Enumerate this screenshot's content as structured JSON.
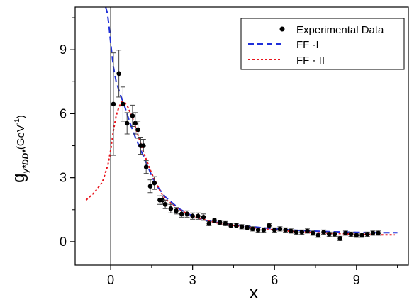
{
  "chart_data": {
    "type": "scatter",
    "title": "",
    "xlabel": "x",
    "ylabel": {
      "main": "g",
      "subscript": "γ*DD*",
      "unit": "(GeV",
      "unit_exp": "-1",
      "unit_close": ")"
    },
    "xlim": [
      -1.3,
      10.9
    ],
    "ylim": [
      -1.1,
      11.0
    ],
    "x_ticks": [
      0,
      3,
      6,
      9
    ],
    "x_tick_labels": [
      "0",
      "3",
      "6",
      "9"
    ],
    "y_ticks": [
      0,
      3,
      6,
      9
    ],
    "y_tick_labels": [
      "0",
      "3",
      "6",
      "9"
    ],
    "legend_position": "top-right",
    "series": [
      {
        "name": "Experimental Data",
        "kind": "points-with-error-bars",
        "color": "#000000",
        "x": [
          0.1,
          0.3,
          0.45,
          0.6,
          0.8,
          0.9,
          1.0,
          1.1,
          1.2,
          1.3,
          1.45,
          1.6,
          1.8,
          1.9,
          2.0,
          2.2,
          2.4,
          2.6,
          2.8,
          3.0,
          3.2,
          3.4,
          3.6,
          3.8,
          4.0,
          4.2,
          4.4,
          4.6,
          4.8,
          5.0,
          5.2,
          5.4,
          5.6,
          5.8,
          6.0,
          6.2,
          6.4,
          6.6,
          6.8,
          7.0,
          7.2,
          7.4,
          7.6,
          7.8,
          8.0,
          8.2,
          8.4,
          8.6,
          8.8,
          9.0,
          9.2,
          9.4,
          9.6,
          9.8
        ],
        "y": [
          6.45,
          7.88,
          6.45,
          5.55,
          5.9,
          5.55,
          5.25,
          4.5,
          4.5,
          3.5,
          2.6,
          2.75,
          1.95,
          1.95,
          1.75,
          1.55,
          1.45,
          1.3,
          1.3,
          1.2,
          1.2,
          1.15,
          0.85,
          1.0,
          0.9,
          0.85,
          0.75,
          0.75,
          0.7,
          0.65,
          0.6,
          0.55,
          0.55,
          0.75,
          0.55,
          0.6,
          0.55,
          0.5,
          0.45,
          0.45,
          0.5,
          0.4,
          0.3,
          0.45,
          0.35,
          0.35,
          0.15,
          0.4,
          0.35,
          0.3,
          0.3,
          0.35,
          0.4,
          0.4
        ],
        "err": [
          2.4,
          1.1,
          0.8,
          0.5,
          0.5,
          0.5,
          0.4,
          0.4,
          0.3,
          0.3,
          0.3,
          0.3,
          0.2,
          0.2,
          0.2,
          0.2,
          0.15,
          0.15,
          0.15,
          0.15,
          0.15,
          0.15,
          0.1,
          0.1,
          0.1,
          0.1,
          0.1,
          0.1,
          0.1,
          0.1,
          0.1,
          0.1,
          0.1,
          0.1,
          0.1,
          0.1,
          0.1,
          0.1,
          0.1,
          0.1,
          0.1,
          0.1,
          0.1,
          0.1,
          0.1,
          0.1,
          0.1,
          0.1,
          0.1,
          0.1,
          0.1,
          0.1,
          0.1,
          0.1
        ]
      },
      {
        "name": "FF -I",
        "kind": "dashed-line",
        "color": "#1f2fd9",
        "x": [
          -0.18,
          -0.12,
          -0.06,
          0.0,
          0.1,
          0.2,
          0.35,
          0.5,
          0.7,
          0.9,
          1.1,
          1.3,
          1.5,
          1.7,
          2.0,
          2.5,
          3.0,
          3.5,
          4.0,
          5.0,
          6.0,
          7.0,
          8.0,
          9.0,
          10.0,
          10.5
        ],
        "y": [
          11.0,
          10.7,
          10.1,
          9.3,
          8.2,
          7.5,
          6.9,
          6.4,
          5.6,
          4.9,
          4.3,
          3.7,
          3.1,
          2.6,
          2.1,
          1.55,
          1.2,
          1.0,
          0.88,
          0.72,
          0.6,
          0.52,
          0.47,
          0.44,
          0.42,
          0.42
        ]
      },
      {
        "name": "FF - II",
        "kind": "dotted-line",
        "color": "#e8141c",
        "x": [
          -0.9,
          -0.6,
          -0.3,
          -0.1,
          0.0,
          0.1,
          0.2,
          0.3,
          0.4,
          0.5,
          0.6,
          0.8,
          1.0,
          1.2,
          1.5,
          1.8,
          2.0,
          2.5,
          3.0,
          3.5,
          4.0,
          5.0,
          6.0,
          7.0,
          8.0,
          9.0,
          10.0,
          10.4
        ],
        "y": [
          1.95,
          2.3,
          2.8,
          3.6,
          4.3,
          5.2,
          5.9,
          6.3,
          6.55,
          6.55,
          6.4,
          5.8,
          5.0,
          4.2,
          3.2,
          2.4,
          2.0,
          1.5,
          1.2,
          1.0,
          0.85,
          0.68,
          0.55,
          0.45,
          0.4,
          0.35,
          0.32,
          0.32
        ]
      }
    ]
  }
}
